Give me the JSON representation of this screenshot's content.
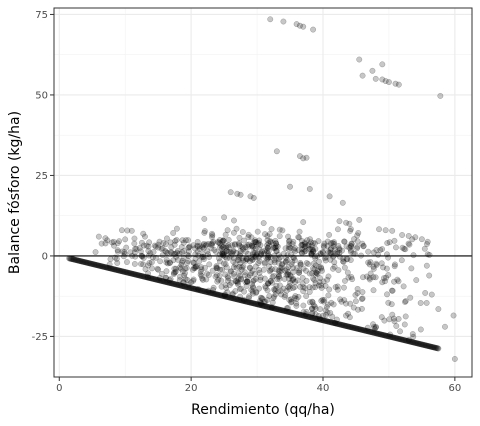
{
  "chart_data": {
    "type": "scatter",
    "xlabel": "Rendimiento (qq/ha)",
    "ylabel": "Balance fósforo (kg/ha)",
    "xlim": [
      -0.8,
      62.6
    ],
    "ylim": [
      -37.6,
      77.0
    ],
    "x_ticks": [
      0,
      20,
      40,
      60
    ],
    "x_tick_labels": [
      "0",
      "20",
      "40",
      "60"
    ],
    "y_ticks": [
      -25,
      0,
      25,
      50,
      75
    ],
    "y_tick_labels": [
      "-25",
      "0",
      "25",
      "50",
      "75"
    ],
    "grid": true,
    "reference_line": {
      "y": 0
    },
    "point_color": "#000000",
    "point_alpha": 0.22,
    "lower_bound_line": {
      "slope": -0.5,
      "intercept": 0,
      "x_from": 1.5,
      "x_to": 57.5,
      "count": 500
    },
    "outliers": [
      [
        32.0,
        73.5
      ],
      [
        34.0,
        72.8
      ],
      [
        36.0,
        72.0
      ],
      [
        36.5,
        71.5
      ],
      [
        37.0,
        71.2
      ],
      [
        38.5,
        70.3
      ],
      [
        45.5,
        61.0
      ],
      [
        47.5,
        57.5
      ],
      [
        49.0,
        59.5
      ],
      [
        46.0,
        56.0
      ],
      [
        48.0,
        55.0
      ],
      [
        49.0,
        54.8
      ],
      [
        49.5,
        54.3
      ],
      [
        50.0,
        54.0
      ],
      [
        51.0,
        53.5
      ],
      [
        51.5,
        53.2
      ],
      [
        57.8,
        49.7
      ],
      [
        33.0,
        32.5
      ],
      [
        36.5,
        31.0
      ],
      [
        37.0,
        30.3
      ],
      [
        37.5,
        30.5
      ],
      [
        26.0,
        19.8
      ],
      [
        27.0,
        19.3
      ],
      [
        27.5,
        19.0
      ],
      [
        29.0,
        18.5
      ],
      [
        29.5,
        18.0
      ],
      [
        35.0,
        21.5
      ],
      [
        38.0,
        20.8
      ],
      [
        41.0,
        18.5
      ],
      [
        43.0,
        16.5
      ],
      [
        22.0,
        11.5
      ],
      [
        25.0,
        12.0
      ],
      [
        26.5,
        11.0
      ],
      [
        31.0,
        10.2
      ],
      [
        37.0,
        10.5
      ],
      [
        42.5,
        10.8
      ],
      [
        43.5,
        10.3
      ],
      [
        44.0,
        10.0
      ],
      [
        45.5,
        11.2
      ],
      [
        48.5,
        8.3
      ],
      [
        49.5,
        8.0
      ],
      [
        50.5,
        7.8
      ],
      [
        52.0,
        6.5
      ],
      [
        53.0,
        6.2
      ],
      [
        54.0,
        5.8
      ],
      [
        55.0,
        5.2
      ],
      [
        9.5,
        8.0
      ],
      [
        11.0,
        7.8
      ],
      [
        13.0,
        6.0
      ],
      [
        6.0,
        6.0
      ],
      [
        7.0,
        5.5
      ],
      [
        8.0,
        4.2
      ],
      [
        5.5,
        1.2
      ],
      [
        59.8,
        -18.5
      ],
      [
        60.0,
        -32.0
      ],
      [
        58.5,
        -22.0
      ],
      [
        57.5,
        -16.5
      ],
      [
        56.5,
        -12.0
      ],
      [
        55.5,
        -11.5
      ]
    ],
    "cloud_seed": 7,
    "cloud_count": 900
  }
}
